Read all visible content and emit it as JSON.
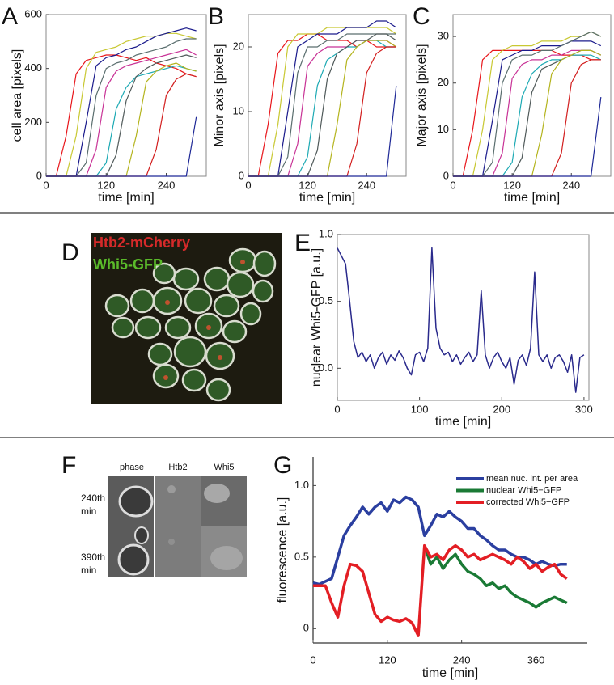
{
  "chart_data": [
    {
      "type": "line",
      "panel": "A",
      "xlabel": "time [min]",
      "ylabel": "cell area [pixels]",
      "frame": true,
      "xlim": [
        0,
        320
      ],
      "xticks": [
        0,
        120,
        240
      ],
      "ylim": [
        0,
        600
      ],
      "yticks": [
        0,
        200,
        400,
        600
      ],
      "x": [
        0,
        20,
        40,
        60,
        80,
        100,
        120,
        140,
        160,
        180,
        200,
        220,
        240,
        260,
        280,
        300
      ],
      "series": [
        {
          "color": "#e8161b",
          "values": [
            0,
            0,
            150,
            380,
            430,
            440,
            450,
            450,
            440,
            430,
            440,
            420,
            410,
            400,
            380,
            370
          ]
        },
        {
          "color": "#c8c832",
          "values": [
            0,
            0,
            0,
            150,
            400,
            460,
            470,
            480,
            500,
            510,
            520,
            520,
            530,
            530,
            520,
            510
          ]
        },
        {
          "color": "#1b1b8c",
          "values": [
            0,
            0,
            0,
            0,
            200,
            410,
            440,
            450,
            470,
            480,
            500,
            520,
            530,
            540,
            550,
            540
          ]
        },
        {
          "color": "#5a6e6e",
          "values": [
            0,
            0,
            0,
            0,
            50,
            300,
            400,
            420,
            430,
            450,
            460,
            470,
            480,
            500,
            510,
            510
          ]
        },
        {
          "color": "#c83296",
          "values": [
            0,
            0,
            0,
            0,
            0,
            100,
            330,
            390,
            410,
            420,
            430,
            440,
            450,
            460,
            470,
            450
          ]
        },
        {
          "color": "#1eaab4",
          "values": [
            0,
            0,
            0,
            0,
            0,
            0,
            50,
            250,
            330,
            370,
            380,
            390,
            400,
            410,
            400,
            390
          ]
        },
        {
          "color": "#505a5a",
          "values": [
            0,
            0,
            0,
            0,
            0,
            0,
            0,
            80,
            280,
            370,
            400,
            420,
            430,
            440,
            450,
            440
          ]
        },
        {
          "color": "#b4b41e",
          "values": [
            0,
            0,
            0,
            0,
            0,
            0,
            0,
            0,
            0,
            150,
            350,
            390,
            410,
            420,
            400,
            390
          ]
        },
        {
          "color": "#d21e1e",
          "values": [
            0,
            0,
            0,
            0,
            0,
            0,
            0,
            0,
            0,
            0,
            0,
            100,
            300,
            360,
            380,
            370
          ]
        },
        {
          "color": "#1e2896",
          "values": [
            0,
            0,
            0,
            0,
            0,
            0,
            0,
            0,
            0,
            0,
            0,
            0,
            0,
            0,
            0,
            220
          ]
        }
      ]
    },
    {
      "type": "line",
      "panel": "B",
      "xlabel": "time [min]",
      "ylabel": "Minor axis [pixels]",
      "frame": true,
      "xlim": [
        0,
        320
      ],
      "xticks": [
        0,
        120,
        240
      ],
      "ylim": [
        0,
        25
      ],
      "yticks": [
        0,
        10,
        20
      ],
      "x": [
        0,
        20,
        40,
        60,
        80,
        100,
        120,
        140,
        160,
        180,
        200,
        220,
        240,
        260,
        280,
        300
      ],
      "series": [
        {
          "color": "#e8161b",
          "values": [
            0,
            0,
            8,
            19,
            21,
            21,
            22,
            22,
            21,
            21,
            21,
            20,
            21,
            20,
            20,
            20
          ]
        },
        {
          "color": "#c8c832",
          "values": [
            0,
            0,
            0,
            8,
            20,
            22,
            22,
            22,
            23,
            23,
            23,
            23,
            23,
            23,
            23,
            22
          ]
        },
        {
          "color": "#1b1b8c",
          "values": [
            0,
            0,
            0,
            0,
            10,
            20,
            21,
            22,
            22,
            22,
            23,
            23,
            23,
            24,
            24,
            23
          ]
        },
        {
          "color": "#5a6e6e",
          "values": [
            0,
            0,
            0,
            0,
            3,
            16,
            20,
            20,
            21,
            21,
            22,
            22,
            22,
            22,
            22,
            22
          ]
        },
        {
          "color": "#c83296",
          "values": [
            0,
            0,
            0,
            0,
            0,
            5,
            17,
            19,
            20,
            20,
            20,
            21,
            21,
            21,
            21,
            20
          ]
        },
        {
          "color": "#1eaab4",
          "values": [
            0,
            0,
            0,
            0,
            0,
            0,
            3,
            14,
            18,
            19,
            20,
            20,
            21,
            21,
            20,
            20
          ]
        },
        {
          "color": "#505a5a",
          "values": [
            0,
            0,
            0,
            0,
            0,
            0,
            0,
            4,
            15,
            19,
            20,
            21,
            21,
            22,
            22,
            21
          ]
        },
        {
          "color": "#b4b41e",
          "values": [
            0,
            0,
            0,
            0,
            0,
            0,
            0,
            0,
            0,
            8,
            18,
            20,
            21,
            21,
            21,
            20
          ]
        },
        {
          "color": "#d21e1e",
          "values": [
            0,
            0,
            0,
            0,
            0,
            0,
            0,
            0,
            0,
            0,
            0,
            5,
            16,
            19,
            20,
            20
          ]
        },
        {
          "color": "#1e2896",
          "values": [
            0,
            0,
            0,
            0,
            0,
            0,
            0,
            0,
            0,
            0,
            0,
            0,
            0,
            0,
            0,
            14
          ]
        }
      ]
    },
    {
      "type": "line",
      "panel": "C",
      "xlabel": "time [min]",
      "ylabel": "Major axis [pixels]",
      "frame": true,
      "xlim": [
        0,
        320
      ],
      "xticks": [
        0,
        120,
        240
      ],
      "ylim": [
        0,
        34.7
      ],
      "yticks": [
        0,
        10,
        20,
        30
      ],
      "x": [
        0,
        20,
        40,
        60,
        80,
        100,
        120,
        140,
        160,
        180,
        200,
        220,
        240,
        260,
        280,
        300
      ],
      "series": [
        {
          "color": "#e8161b",
          "values": [
            0,
            0,
            10,
            25,
            27,
            27,
            27,
            27,
            27,
            27,
            27,
            26,
            26,
            26,
            25,
            25
          ]
        },
        {
          "color": "#c8c832",
          "values": [
            0,
            0,
            0,
            10,
            25,
            27,
            28,
            28,
            28,
            29,
            29,
            29,
            30,
            30,
            31,
            30
          ]
        },
        {
          "color": "#1b1b8c",
          "values": [
            0,
            0,
            0,
            0,
            12,
            25,
            26,
            27,
            27,
            28,
            28,
            28,
            29,
            29,
            29,
            28
          ]
        },
        {
          "color": "#5a6e6e",
          "values": [
            0,
            0,
            0,
            0,
            3,
            20,
            25,
            26,
            26,
            27,
            27,
            28,
            29,
            30,
            31,
            30
          ]
        },
        {
          "color": "#c83296",
          "values": [
            0,
            0,
            0,
            0,
            0,
            5,
            21,
            24,
            25,
            25,
            26,
            26,
            27,
            27,
            27,
            26
          ]
        },
        {
          "color": "#1eaab4",
          "values": [
            0,
            0,
            0,
            0,
            0,
            0,
            3,
            17,
            22,
            24,
            25,
            25,
            26,
            26,
            26,
            25
          ]
        },
        {
          "color": "#505a5a",
          "values": [
            0,
            0,
            0,
            0,
            0,
            0,
            0,
            4,
            18,
            23,
            24,
            25,
            26,
            27,
            27,
            26
          ]
        },
        {
          "color": "#b4b41e",
          "values": [
            0,
            0,
            0,
            0,
            0,
            0,
            0,
            0,
            0,
            9,
            22,
            25,
            26,
            27,
            27,
            26
          ]
        },
        {
          "color": "#d21e1e",
          "values": [
            0,
            0,
            0,
            0,
            0,
            0,
            0,
            0,
            0,
            0,
            0,
            5,
            20,
            24,
            25,
            25
          ]
        },
        {
          "color": "#1e2896",
          "values": [
            0,
            0,
            0,
            0,
            0,
            0,
            0,
            0,
            0,
            0,
            0,
            0,
            0,
            0,
            0,
            17
          ]
        }
      ]
    },
    {
      "type": "line",
      "panel": "E",
      "xlabel": "time [min]",
      "ylabel": "nuclear Whi5-GFP [a.u.]",
      "frame": true,
      "xlim": [
        0,
        306
      ],
      "xticks": [
        0,
        100,
        200,
        300
      ],
      "ylim": [
        -0.24,
        1.0
      ],
      "yticks": [
        {
          "value": 0,
          "label": "0.0"
        },
        0.5,
        {
          "value": 1,
          "label": "1.0"
        }
      ],
      "x": [
        0,
        5,
        10,
        15,
        20,
        25,
        30,
        35,
        40,
        45,
        50,
        55,
        60,
        65,
        70,
        75,
        80,
        85,
        90,
        95,
        100,
        105,
        110,
        115,
        120,
        125,
        130,
        135,
        140,
        145,
        150,
        155,
        160,
        165,
        170,
        175,
        180,
        185,
        190,
        195,
        200,
        205,
        210,
        215,
        220,
        225,
        230,
        235,
        240,
        245,
        250,
        255,
        260,
        265,
        270,
        275,
        280,
        285,
        290,
        295,
        300
      ],
      "series": [
        {
          "color": "#2a2a8c",
          "values": [
            0.9,
            0.84,
            0.78,
            0.5,
            0.2,
            0.08,
            0.12,
            0.05,
            0.1,
            0.0,
            0.08,
            0.12,
            0.03,
            0.1,
            0.06,
            0.13,
            0.08,
            0.0,
            -0.05,
            0.1,
            0.12,
            0.05,
            0.15,
            0.9,
            0.3,
            0.15,
            0.1,
            0.12,
            0.05,
            0.1,
            0.03,
            0.08,
            0.12,
            0.05,
            0.1,
            0.58,
            0.1,
            0.0,
            0.08,
            0.12,
            0.05,
            0.0,
            0.08,
            -0.12,
            0.06,
            0.1,
            0.02,
            0.15,
            0.72,
            0.1,
            0.05,
            0.1,
            0.0,
            0.08,
            0.1,
            0.05,
            -0.03,
            0.1,
            -0.18,
            0.08,
            0.1
          ]
        }
      ]
    },
    {
      "type": "line",
      "panel": "G",
      "xlabel": "time [min]",
      "ylabel": "fluorescence [a.u.]",
      "frame": false,
      "legend": "upper right",
      "xlim": [
        0,
        443
      ],
      "xticks": [
        0,
        120,
        240,
        360
      ],
      "ylim": [
        -0.1,
        1.2
      ],
      "yticks": [
        0,
        0.5,
        {
          "value": 1,
          "label": "1.0"
        }
      ],
      "x": [
        0,
        10,
        20,
        30,
        40,
        50,
        60,
        70,
        80,
        90,
        100,
        110,
        120,
        130,
        140,
        150,
        160,
        170,
        180,
        190,
        200,
        210,
        220,
        230,
        240,
        250,
        260,
        270,
        280,
        290,
        300,
        310,
        320,
        330,
        340,
        350,
        360,
        370,
        380,
        390,
        400,
        410
      ],
      "series": [
        {
          "name": "mean nuc. int. per area",
          "color": "#2b3fa0",
          "values": [
            0.32,
            0.31,
            0.33,
            0.35,
            0.5,
            0.65,
            0.72,
            0.78,
            0.85,
            0.8,
            0.85,
            0.88,
            0.82,
            0.9,
            0.88,
            0.92,
            0.9,
            0.85,
            0.65,
            0.72,
            0.8,
            0.78,
            0.82,
            0.78,
            0.75,
            0.7,
            0.7,
            0.65,
            0.62,
            0.58,
            0.55,
            0.55,
            0.52,
            0.5,
            0.5,
            0.48,
            0.45,
            0.47,
            0.45,
            0.44,
            0.45,
            0.45
          ]
        },
        {
          "name": "nuclear Whi5−GFP",
          "color": "#1a7a35",
          "values": [
            null,
            null,
            null,
            null,
            null,
            null,
            null,
            null,
            null,
            null,
            null,
            null,
            null,
            null,
            null,
            null,
            null,
            null,
            0.58,
            0.45,
            0.5,
            0.42,
            0.48,
            0.52,
            0.45,
            0.4,
            0.38,
            0.35,
            0.3,
            0.32,
            0.28,
            0.3,
            0.25,
            0.22,
            0.2,
            0.18,
            0.15,
            0.18,
            0.2,
            0.22,
            0.2,
            0.18
          ]
        },
        {
          "name": "corrected Whi5−GFP",
          "color": "#e31e24",
          "values": [
            0.3,
            0.3,
            0.3,
            0.18,
            0.08,
            0.3,
            0.45,
            0.44,
            0.4,
            0.25,
            0.1,
            0.05,
            0.08,
            0.06,
            0.05,
            0.07,
            0.04,
            -0.05,
            0.58,
            0.5,
            0.52,
            0.48,
            0.55,
            0.58,
            0.55,
            0.5,
            0.52,
            0.48,
            0.5,
            0.52,
            0.5,
            0.48,
            0.45,
            0.5,
            0.47,
            0.42,
            0.45,
            0.4,
            0.43,
            0.45,
            0.38,
            0.35
          ]
        }
      ]
    }
  ],
  "images": [
    {
      "panel": "D",
      "labels": [
        "Htb2-mCherry",
        "Whi5-GFP"
      ]
    },
    {
      "panel": "F",
      "column_labels": [
        "phase",
        "Htb2",
        "Whi5"
      ],
      "row_labels": [
        [
          "240th",
          "min"
        ],
        [
          "390th",
          "min"
        ]
      ]
    }
  ]
}
